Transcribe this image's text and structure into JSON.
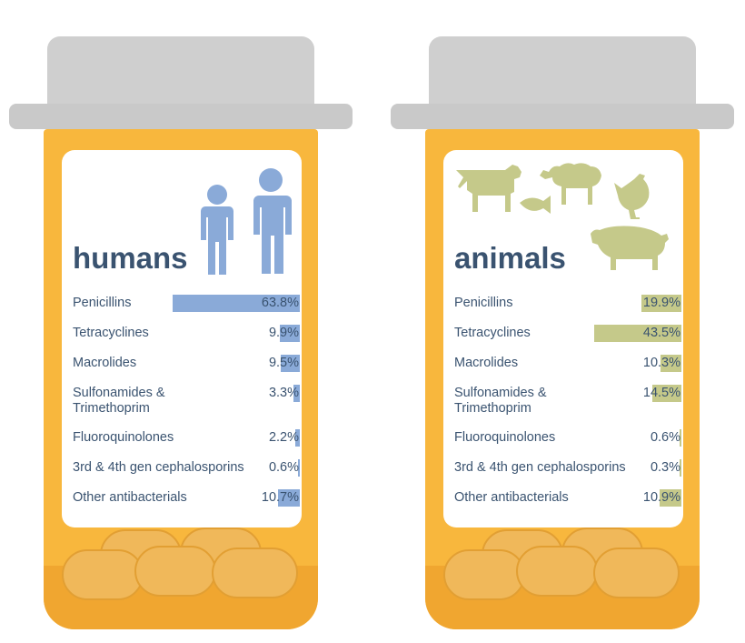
{
  "colors": {
    "humans_bar": "#8aaad8",
    "animals_bar": "#c5c98a",
    "humans_icon": "#8aaad8",
    "animals_icon": "#c5c98a",
    "text": "#3a5370"
  },
  "chart_data": [
    {
      "type": "bar",
      "title": "humans",
      "orientation": "horizontal",
      "icon": "human-figures-icon",
      "categories": [
        "Penicillins",
        "Tetracyclines",
        "Macrolides",
        "Sulfonamides & Trimethoprim",
        "Fluoroquinolones",
        "3rd & 4th gen cephalosporins",
        "Other antibacterials"
      ],
      "values": [
        63.8,
        9.9,
        9.5,
        3.3,
        2.2,
        0.6,
        10.7
      ],
      "value_labels": [
        "63.8%",
        "9.9%",
        "9.5%",
        "3.3%",
        "2.2%",
        "0.6%",
        "10.7%"
      ],
      "xlim": [
        0,
        100
      ],
      "grid": false
    },
    {
      "type": "bar",
      "title": "animals",
      "orientation": "horizontal",
      "icon": "farm-animals-icon",
      "categories": [
        "Penicillins",
        "Tetracyclines",
        "Macrolides",
        "Sulfonamides & Trimethoprim",
        "Fluoroquinolones",
        "3rd & 4th gen cephalosporins",
        "Other antibacterials"
      ],
      "values": [
        19.9,
        43.5,
        10.3,
        14.5,
        0.6,
        0.3,
        10.9
      ],
      "value_labels": [
        "19.9%",
        "43.5%",
        "10.3%",
        "14.5%",
        "0.6%",
        "0.3%",
        "10.9%"
      ],
      "xlim": [
        0,
        100
      ],
      "grid": false
    }
  ]
}
